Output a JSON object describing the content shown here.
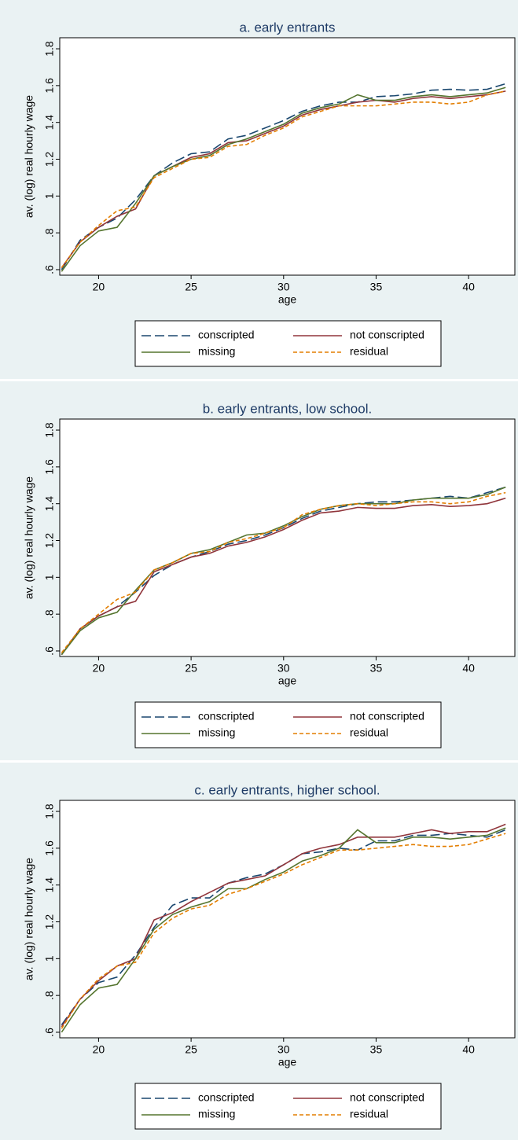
{
  "chart_data": [
    {
      "type": "line",
      "title": "a. early entrants",
      "xlabel": "age",
      "ylabel": "av. (log) real hourly wage",
      "x": [
        18,
        19,
        20,
        21,
        22,
        23,
        24,
        25,
        26,
        27,
        28,
        29,
        30,
        31,
        32,
        33,
        34,
        35,
        36,
        37,
        38,
        39,
        40,
        41,
        42
      ],
      "xlim": [
        17.9,
        42.5
      ],
      "xticks": [
        20,
        25,
        30,
        35,
        40
      ],
      "ylim": [
        0.57,
        1.86
      ],
      "yticks": [
        {
          "value": 0.6,
          "label": ".6"
        },
        {
          "value": 0.8,
          "label": ".8"
        },
        1,
        {
          "value": 1.2,
          "label": "1.2"
        },
        {
          "value": 1.4,
          "label": "1.4"
        },
        {
          "value": 1.6,
          "label": "1.6"
        },
        {
          "value": 1.8,
          "label": "1.8"
        }
      ],
      "legend": "bottom",
      "series": [
        {
          "name": "conscripted",
          "color": "#1a476f",
          "dash": "longdash",
          "values": [
            0.6,
            0.76,
            0.83,
            0.88,
            0.98,
            1.11,
            1.18,
            1.23,
            1.24,
            1.31,
            1.33,
            1.37,
            1.41,
            1.46,
            1.49,
            1.51,
            1.51,
            1.54,
            1.545,
            1.555,
            1.575,
            1.58,
            1.575,
            1.58,
            1.61
          ]
        },
        {
          "name": "not conscripted",
          "color": "#90353b",
          "dash": "solid",
          "values": [
            0.61,
            0.75,
            0.83,
            0.89,
            0.93,
            1.11,
            1.16,
            1.21,
            1.23,
            1.29,
            1.3,
            1.34,
            1.38,
            1.44,
            1.47,
            1.49,
            1.51,
            1.52,
            1.51,
            1.53,
            1.54,
            1.53,
            1.54,
            1.55,
            1.57
          ]
        },
        {
          "name": "missing",
          "color": "#55752f",
          "dash": "solid",
          "values": [
            0.59,
            0.73,
            0.81,
            0.83,
            0.96,
            1.11,
            1.16,
            1.2,
            1.22,
            1.28,
            1.31,
            1.35,
            1.39,
            1.45,
            1.48,
            1.5,
            1.55,
            1.52,
            1.52,
            1.54,
            1.55,
            1.54,
            1.55,
            1.56,
            1.59
          ]
        },
        {
          "name": "residual",
          "color": "#e37e00",
          "dash": "shortdash",
          "values": [
            0.61,
            0.75,
            0.84,
            0.92,
            0.94,
            1.1,
            1.15,
            1.2,
            1.21,
            1.27,
            1.28,
            1.33,
            1.37,
            1.43,
            1.46,
            1.49,
            1.49,
            1.49,
            1.5,
            1.51,
            1.51,
            1.5,
            1.51,
            1.55,
            1.57
          ]
        }
      ]
    },
    {
      "type": "line",
      "title": "b. early entrants, low school.",
      "xlabel": "age",
      "ylabel": "av. (log) real hourly wage",
      "x": [
        18,
        19,
        20,
        21,
        22,
        23,
        24,
        25,
        26,
        27,
        28,
        29,
        30,
        31,
        32,
        33,
        34,
        35,
        36,
        37,
        38,
        39,
        40,
        41,
        42
      ],
      "xlim": [
        17.9,
        42.5
      ],
      "xticks": [
        20,
        25,
        30,
        35,
        40
      ],
      "ylim": [
        0.57,
        1.86
      ],
      "yticks": [
        {
          "value": 0.6,
          "label": ".6"
        },
        {
          "value": 0.8,
          "label": ".8"
        },
        1,
        {
          "value": 1.2,
          "label": "1.2"
        },
        {
          "value": 1.4,
          "label": "1.4"
        },
        {
          "value": 1.6,
          "label": "1.6"
        },
        {
          "value": 1.8,
          "label": "1.8"
        }
      ],
      "legend": "bottom",
      "series": [
        {
          "name": "conscripted",
          "color": "#1a476f",
          "dash": "longdash",
          "values": [
            0.58,
            0.72,
            0.79,
            0.84,
            0.92,
            1.01,
            1.07,
            1.11,
            1.14,
            1.18,
            1.2,
            1.23,
            1.27,
            1.32,
            1.36,
            1.38,
            1.4,
            1.41,
            1.41,
            1.42,
            1.43,
            1.44,
            1.43,
            1.46,
            1.49
          ]
        },
        {
          "name": "not conscripted",
          "color": "#90353b",
          "dash": "solid",
          "values": [
            0.58,
            0.72,
            0.79,
            0.84,
            0.87,
            1.03,
            1.07,
            1.11,
            1.13,
            1.17,
            1.19,
            1.22,
            1.26,
            1.31,
            1.35,
            1.36,
            1.38,
            1.375,
            1.375,
            1.39,
            1.395,
            1.385,
            1.39,
            1.4,
            1.43
          ]
        },
        {
          "name": "missing",
          "color": "#55752f",
          "dash": "solid",
          "values": [
            0.58,
            0.71,
            0.78,
            0.81,
            0.93,
            1.04,
            1.08,
            1.13,
            1.15,
            1.19,
            1.23,
            1.24,
            1.28,
            1.33,
            1.37,
            1.39,
            1.4,
            1.4,
            1.4,
            1.42,
            1.43,
            1.43,
            1.43,
            1.45,
            1.49
          ]
        },
        {
          "name": "residual",
          "color": "#e37e00",
          "dash": "shortdash",
          "values": [
            0.59,
            0.72,
            0.8,
            0.88,
            0.92,
            1.04,
            1.08,
            1.13,
            1.14,
            1.19,
            1.21,
            1.24,
            1.27,
            1.34,
            1.37,
            1.39,
            1.4,
            1.39,
            1.4,
            1.41,
            1.41,
            1.4,
            1.41,
            1.44,
            1.46
          ]
        }
      ]
    },
    {
      "type": "line",
      "title": "c. early entrants, higher school.",
      "xlabel": "age",
      "ylabel": "av. (log) real hourly wage",
      "x": [
        18,
        19,
        20,
        21,
        22,
        23,
        24,
        25,
        26,
        27,
        28,
        29,
        30,
        31,
        32,
        33,
        34,
        35,
        36,
        37,
        38,
        39,
        40,
        41,
        42
      ],
      "xlim": [
        17.9,
        42.5
      ],
      "xticks": [
        20,
        25,
        30,
        35,
        40
      ],
      "ylim": [
        0.57,
        1.86
      ],
      "yticks": [
        {
          "value": 0.6,
          "label": ".6"
        },
        {
          "value": 0.8,
          "label": ".8"
        },
        1,
        {
          "value": 1.2,
          "label": "1.2"
        },
        {
          "value": 1.4,
          "label": "1.4"
        },
        {
          "value": 1.6,
          "label": "1.6"
        },
        {
          "value": 1.8,
          "label": "1.8"
        }
      ],
      "legend": "bottom",
      "series": [
        {
          "name": "conscripted",
          "color": "#1a476f",
          "dash": "longdash",
          "values": [
            0.64,
            0.78,
            0.87,
            0.9,
            1.02,
            1.17,
            1.29,
            1.33,
            1.33,
            1.41,
            1.44,
            1.46,
            1.51,
            1.57,
            1.58,
            1.6,
            1.59,
            1.64,
            1.64,
            1.67,
            1.67,
            1.68,
            1.67,
            1.66,
            1.7
          ]
        },
        {
          "name": "not conscripted",
          "color": "#90353b",
          "dash": "solid",
          "values": [
            0.63,
            0.78,
            0.88,
            0.96,
            1.0,
            1.21,
            1.25,
            1.31,
            1.36,
            1.41,
            1.43,
            1.45,
            1.51,
            1.57,
            1.6,
            1.62,
            1.66,
            1.66,
            1.66,
            1.68,
            1.7,
            1.68,
            1.69,
            1.69,
            1.73
          ]
        },
        {
          "name": "missing",
          "color": "#55752f",
          "dash": "solid",
          "values": [
            0.6,
            0.75,
            0.84,
            0.86,
            1.0,
            1.16,
            1.24,
            1.28,
            1.31,
            1.38,
            1.38,
            1.43,
            1.47,
            1.53,
            1.56,
            1.6,
            1.7,
            1.63,
            1.63,
            1.66,
            1.66,
            1.65,
            1.66,
            1.67,
            1.71
          ]
        },
        {
          "name": "residual",
          "color": "#e37e00",
          "dash": "shortdash",
          "values": [
            0.62,
            0.78,
            0.89,
            0.96,
            0.98,
            1.14,
            1.22,
            1.27,
            1.29,
            1.35,
            1.38,
            1.42,
            1.46,
            1.51,
            1.55,
            1.59,
            1.59,
            1.6,
            1.61,
            1.62,
            1.61,
            1.61,
            1.62,
            1.65,
            1.68
          ]
        }
      ]
    }
  ]
}
